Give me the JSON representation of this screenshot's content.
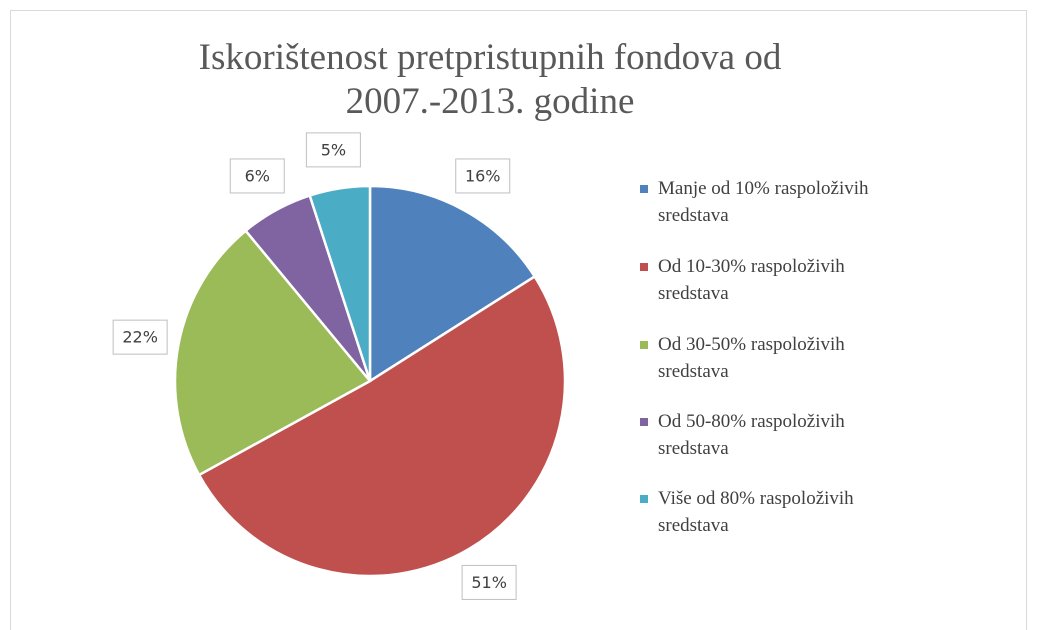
{
  "chart_data": {
    "type": "pie",
    "title": "Iskorištenost pretpristupnih fondova od 2007.-2013. godine",
    "categories": [
      "Manje od 10% raspoloživih sredstava",
      "Od 10-30% raspoloživih sredstava",
      "Od 30-50% raspoloživih sredstava",
      "Od 50-80% raspoloživih sredstava",
      "Više od 80% raspoloživih sredstava"
    ],
    "values": [
      16,
      51,
      22,
      6,
      5
    ],
    "value_labels": [
      "16%",
      "51%",
      "22%",
      "6%",
      "5%"
    ],
    "colors": [
      "#4f81bd",
      "#c0504d",
      "#9bbb59",
      "#8064a2",
      "#4bacc6"
    ],
    "legend": "right"
  }
}
